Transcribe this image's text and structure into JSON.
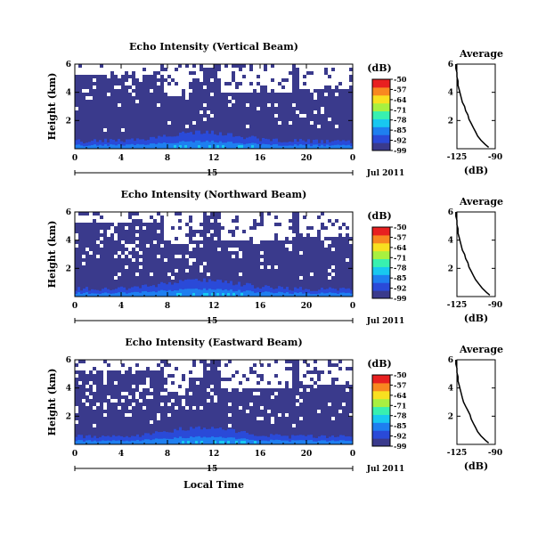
{
  "figure": {
    "date_label": "Jul 2011",
    "xlabel": "Local Time",
    "colorbar_unit": "(dB)",
    "colorbar_ticks": [
      "-50",
      "-57",
      "-64",
      "-71",
      "-78",
      "-85",
      "-92",
      "-99"
    ],
    "avg_title": "Average",
    "avg_xlabel": "(dB)"
  },
  "chart_data": [
    {
      "type": "heatmap",
      "title": "Echo Intensity (Vertical Beam)",
      "ylabel": "Height (km)",
      "x_ticks": [
        "0",
        "4",
        "8",
        "12",
        "16",
        "20",
        "0"
      ],
      "x_range": [
        0,
        24
      ],
      "y_ticks": [
        "2",
        "4",
        "6"
      ],
      "y_range": [
        0,
        6
      ],
      "date_tick": "15",
      "value_range_db": [
        -99,
        -50
      ],
      "colormap": [
        "#3a3a8c",
        "#2a4ad8",
        "#1e7ff0",
        "#18c8f0",
        "#38f0b0",
        "#a8f040",
        "#f8e020",
        "#f88820",
        "#e82020"
      ],
      "masked_color": "#ffffff",
      "average_profile": {
        "title": "Average",
        "xlabel": "(dB)",
        "x_ticks": [
          "-125",
          "-90"
        ],
        "y_ticks": [
          "2",
          "4",
          "6"
        ],
        "x_range": [
          -125,
          -90
        ],
        "y_range": [
          0,
          6
        ],
        "height_km": [
          0.1,
          0.3,
          0.6,
          0.9,
          1.2,
          1.5,
          1.8,
          2.1,
          2.4,
          2.7,
          3.0,
          3.3,
          3.6,
          3.9,
          4.2,
          4.5,
          4.8,
          5.1,
          5.4,
          5.7,
          6.0
        ],
        "db": [
          -96,
          -99,
          -103,
          -106,
          -108,
          -110,
          -112,
          -114,
          -115,
          -117,
          -118,
          -120,
          -121,
          -122,
          -123,
          -124,
          -124,
          -125,
          -125,
          -126,
          -126
        ]
      }
    },
    {
      "type": "heatmap",
      "title": "Echo Intensity (Northward Beam)",
      "ylabel": "Height (km)",
      "x_ticks": [
        "0",
        "4",
        "8",
        "12",
        "16",
        "20",
        "0"
      ],
      "x_range": [
        0,
        24
      ],
      "y_ticks": [
        "2",
        "4",
        "6"
      ],
      "y_range": [
        0,
        6
      ],
      "date_tick": "15",
      "value_range_db": [
        -99,
        -50
      ],
      "colormap": [
        "#3a3a8c",
        "#2a4ad8",
        "#1e7ff0",
        "#18c8f0",
        "#38f0b0",
        "#a8f040",
        "#f8e020",
        "#f88820",
        "#e82020"
      ],
      "masked_color": "#ffffff",
      "average_profile": {
        "title": "Average",
        "xlabel": "(dB)",
        "x_ticks": [
          "-125",
          "-90"
        ],
        "y_ticks": [
          "2",
          "4",
          "6"
        ],
        "x_range": [
          -125,
          -90
        ],
        "y_range": [
          0,
          6
        ],
        "height_km": [
          0.1,
          0.3,
          0.6,
          0.9,
          1.2,
          1.5,
          1.8,
          2.1,
          2.4,
          2.7,
          3.0,
          3.3,
          3.6,
          3.9,
          4.2,
          4.5,
          4.8,
          5.1,
          5.4,
          5.7,
          6.0
        ],
        "db": [
          -95,
          -98,
          -102,
          -105,
          -108,
          -110,
          -112,
          -114,
          -115,
          -117,
          -118,
          -120,
          -121,
          -122,
          -123,
          -124,
          -124,
          -125,
          -125,
          -126,
          -126
        ]
      }
    },
    {
      "type": "heatmap",
      "title": "Echo Intensity (Eastward Beam)",
      "ylabel": "Height (km)",
      "x_ticks": [
        "0",
        "4",
        "8",
        "12",
        "16",
        "20",
        "0"
      ],
      "x_range": [
        0,
        24
      ],
      "y_ticks": [
        "2",
        "4",
        "6"
      ],
      "y_range": [
        0,
        6
      ],
      "date_tick": "15",
      "value_range_db": [
        -99,
        -50
      ],
      "colormap": [
        "#3a3a8c",
        "#2a4ad8",
        "#1e7ff0",
        "#18c8f0",
        "#38f0b0",
        "#a8f040",
        "#f8e020",
        "#f88820",
        "#e82020"
      ],
      "masked_color": "#ffffff",
      "average_profile": {
        "title": "Average",
        "xlabel": "(dB)",
        "x_ticks": [
          "-125",
          "-90"
        ],
        "y_ticks": [
          "2",
          "4",
          "6"
        ],
        "x_range": [
          -125,
          -90
        ],
        "y_range": [
          0,
          6
        ],
        "height_km": [
          0.1,
          0.3,
          0.6,
          0.9,
          1.2,
          1.5,
          1.8,
          2.1,
          2.4,
          2.7,
          3.0,
          3.3,
          3.6,
          3.9,
          4.2,
          4.5,
          4.8,
          5.1,
          5.4,
          5.7,
          6.0
        ],
        "db": [
          -96,
          -99,
          -103,
          -106,
          -108,
          -110,
          -112,
          -113,
          -115,
          -117,
          -119,
          -120,
          -121,
          -122,
          -123,
          -124,
          -124,
          -125,
          -125,
          -126,
          -126
        ]
      }
    }
  ]
}
